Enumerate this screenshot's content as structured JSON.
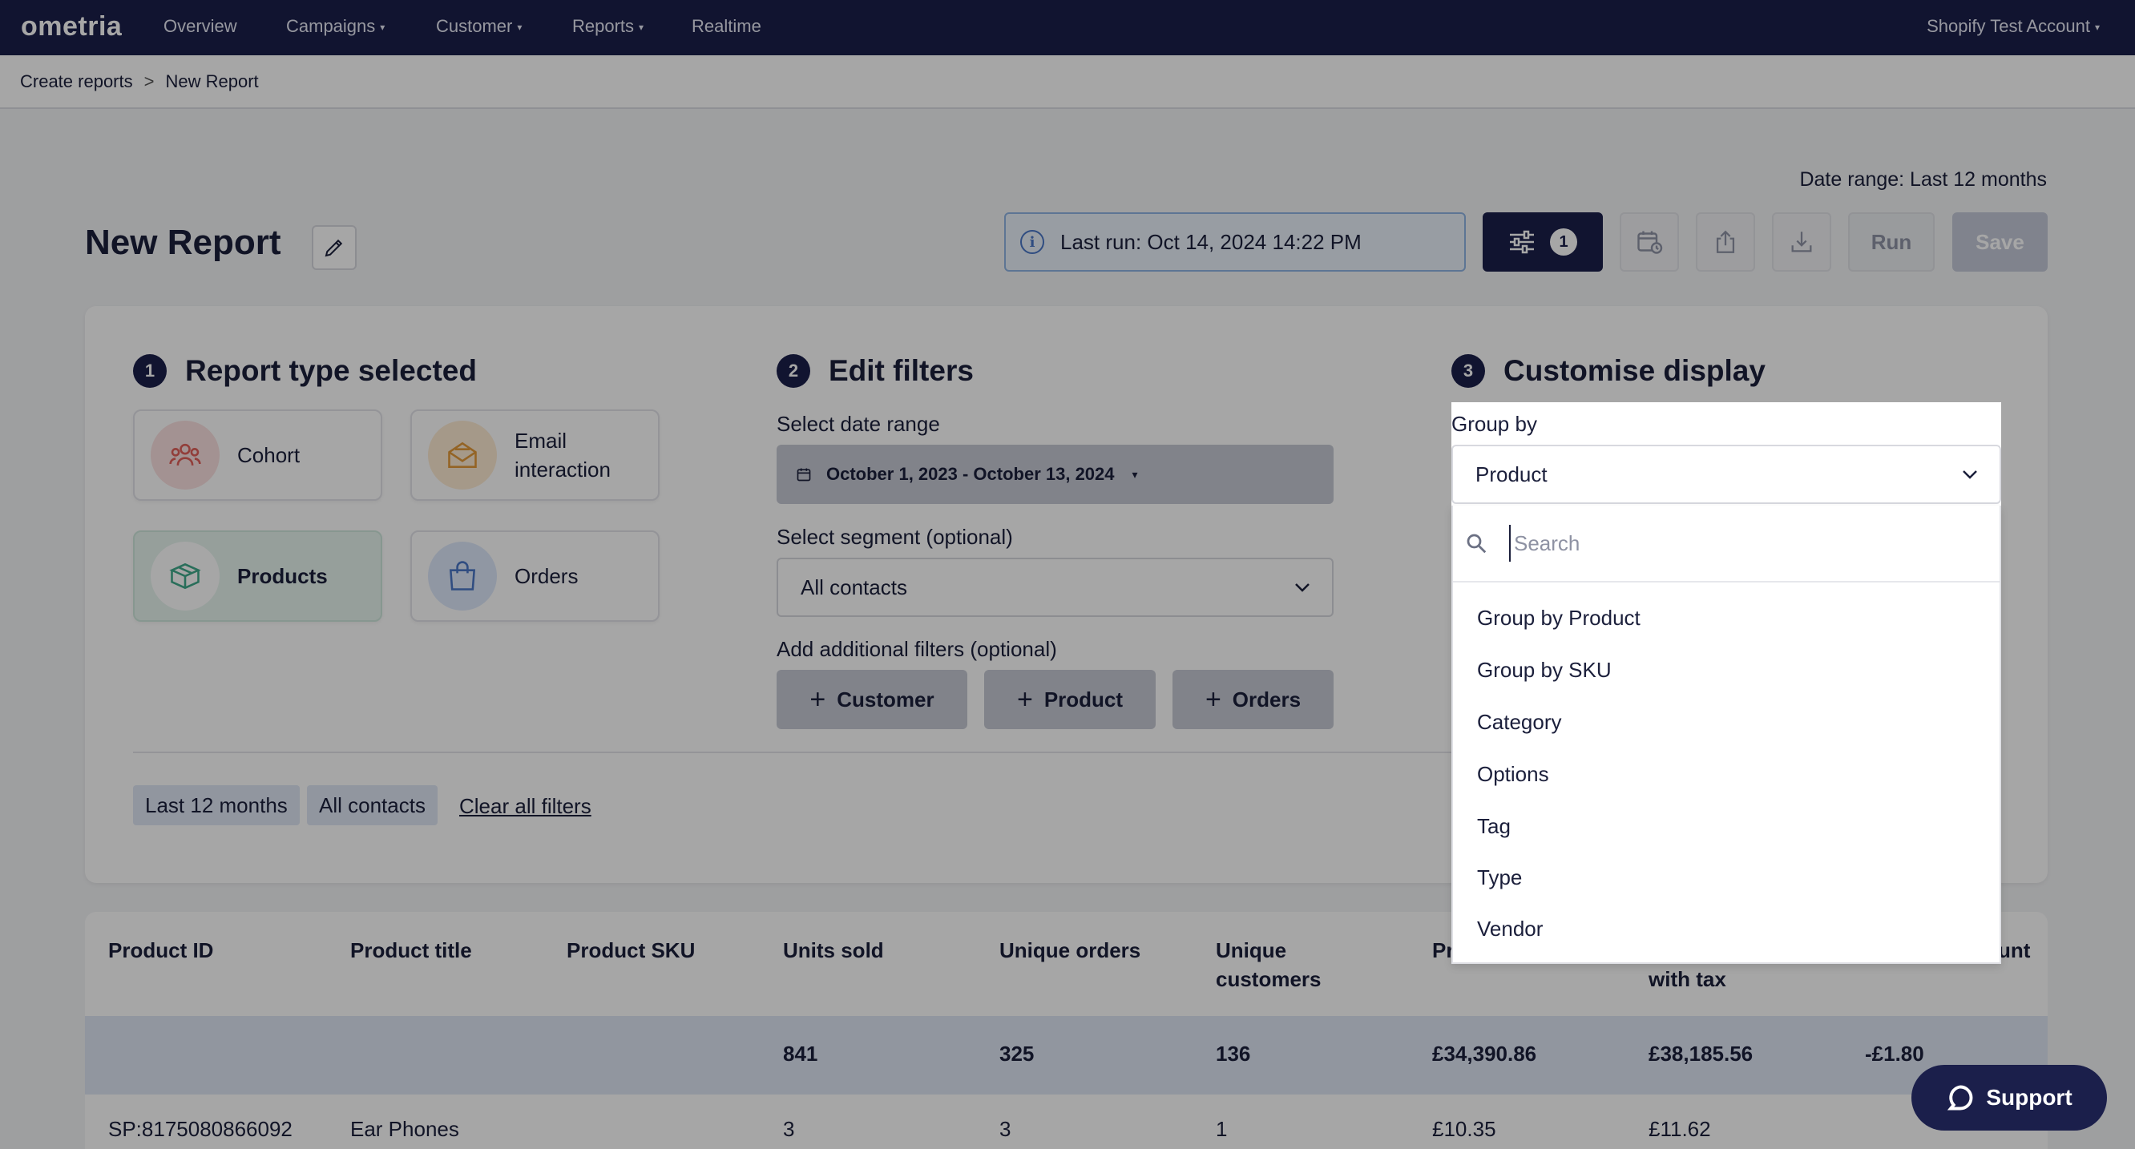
{
  "nav": {
    "logo": "ometria",
    "items": [
      {
        "label": "Overview",
        "caret": false
      },
      {
        "label": "Campaigns",
        "caret": true
      },
      {
        "label": "Customer",
        "caret": true
      },
      {
        "label": "Reports",
        "caret": true
      },
      {
        "label": "Realtime",
        "caret": false
      }
    ],
    "account": "Shopify Test Account"
  },
  "breadcrumb": {
    "parent": "Create reports",
    "separator": ">",
    "current": "New Report"
  },
  "header": {
    "date_range_label": "Date range: Last 12 months",
    "title": "New Report",
    "last_run": "Last run: Oct 14, 2024 14:22 PM",
    "filter_count": "1",
    "run_label": "Run",
    "save_label": "Save"
  },
  "steps": {
    "report_type": {
      "num": "1",
      "title": "Report type selected",
      "tiles": [
        {
          "label": "Cohort",
          "icon": "users-icon",
          "selected": false
        },
        {
          "label": "Email interaction",
          "icon": "envelope-icon",
          "selected": false
        },
        {
          "label": "Products",
          "icon": "box-icon",
          "selected": true
        },
        {
          "label": "Orders",
          "icon": "shopping-bag-icon",
          "selected": false
        }
      ]
    },
    "filters": {
      "num": "2",
      "title": "Edit filters",
      "date_label": "Select date range",
      "date_value": "October 1, 2023 - October 13, 2024",
      "segment_label": "Select segment (optional)",
      "segment_value": "All contacts",
      "additional_label": "Add additional filters (optional)",
      "add_buttons": [
        "Customer",
        "Product",
        "Orders"
      ]
    },
    "display": {
      "num": "3",
      "title": "Customise display"
    }
  },
  "applied_filters": {
    "chips": [
      "Last 12 months",
      "All contacts"
    ],
    "clear_label": "Clear all filters"
  },
  "table": {
    "headers": [
      "Product ID",
      "Product title",
      "Product SKU",
      "Units sold",
      "Unique orders",
      "Unique customers",
      "Pr",
      "with tax",
      "unt"
    ],
    "totals": {
      "units": "841",
      "orders": "325",
      "customers": "136",
      "price": "£34,390.86",
      "price_tax": "£38,185.56",
      "discount": "-£1.80"
    },
    "rows": [
      {
        "id": "SP:8175080866092",
        "title": "Ear Phones",
        "sku": "",
        "units": "3",
        "orders": "3",
        "customers": "1",
        "price": "£10.35",
        "price_tax": "£11.62"
      }
    ]
  },
  "groupby": {
    "label": "Group by",
    "selected": "Product",
    "search_placeholder": "Search",
    "options": [
      "Group by Product",
      "Group by SKU",
      "Category",
      "Options",
      "Tag",
      "Type",
      "Vendor"
    ]
  },
  "support_label": "Support",
  "colors": {
    "navy": "#1b1f4b",
    "accent_blue": "#4a77c6",
    "selected_tile": "#e7f5ef"
  }
}
